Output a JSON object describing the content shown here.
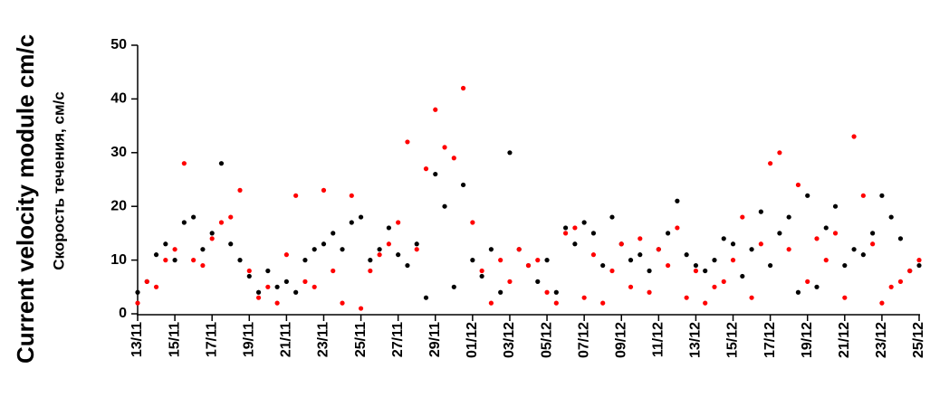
{
  "chart_data": {
    "type": "scatter",
    "y_title": "Current velocity module cm/c",
    "y_subtitle": "Скорость течения, см/с",
    "x": [
      0,
      0.5,
      1,
      1.5,
      2,
      2.5,
      3,
      3.5,
      4,
      4.5,
      5,
      5.5,
      6,
      6.5,
      7,
      7.5,
      8,
      8.5,
      9,
      9.5,
      10,
      10.5,
      11,
      11.5,
      12,
      12.5,
      13,
      13.5,
      14,
      14.5,
      15,
      15.5,
      16,
      16.5,
      17,
      17.5,
      18,
      18.5,
      19,
      19.5,
      20,
      20.5,
      21,
      21.5,
      22,
      22.5,
      23,
      23.5,
      24,
      24.5,
      25,
      25.5,
      26,
      26.5,
      27,
      27.5,
      28,
      28.5,
      29,
      29.5,
      30,
      30.5,
      31,
      31.5,
      32,
      32.5,
      33,
      33.5,
      34,
      34.5,
      35,
      35.5,
      36,
      36.5,
      37,
      37.5,
      38,
      38.5,
      39,
      39.5,
      40,
      40.5,
      41,
      41.5,
      42
    ],
    "series": [
      {
        "color": "#000000",
        "values": [
          4,
          6,
          11,
          13,
          10,
          17,
          18,
          12,
          15,
          28,
          13,
          10,
          7,
          4,
          8,
          5,
          6,
          4,
          10,
          12,
          13,
          15,
          12,
          17,
          18,
          10,
          12,
          16,
          11,
          9,
          13,
          3,
          26,
          20,
          5,
          24,
          10,
          7,
          12,
          4,
          30,
          12,
          9,
          6,
          10,
          4,
          16,
          13,
          17,
          15,
          9,
          18,
          13,
          10,
          11,
          8,
          12,
          15,
          21,
          11,
          9,
          8,
          10,
          14,
          13,
          7,
          12,
          19,
          9,
          15,
          18,
          4,
          22,
          5,
          16,
          20,
          9,
          12,
          11,
          15,
          22,
          18,
          14,
          8,
          9
        ]
      },
      {
        "color": "#ff0000",
        "values": [
          2,
          6,
          5,
          10,
          12,
          28,
          10,
          9,
          14,
          17,
          18,
          23,
          8,
          3,
          5,
          2,
          11,
          22,
          6,
          5,
          23,
          8,
          2,
          22,
          1,
          8,
          11,
          13,
          17,
          32,
          12,
          27,
          38,
          31,
          29,
          42,
          17,
          8,
          2,
          10,
          6,
          12,
          9,
          10,
          4,
          2,
          15,
          16,
          3,
          11,
          2,
          8,
          13,
          5,
          14,
          4,
          12,
          9,
          16,
          3,
          8,
          2,
          5,
          6,
          10,
          18,
          3,
          13,
          28,
          30,
          12,
          24,
          6,
          14,
          10,
          15,
          3,
          33,
          22,
          13,
          2,
          5,
          6,
          8,
          10
        ]
      }
    ],
    "xlim": [
      0,
      42
    ],
    "xticks": [
      {
        "value": 0,
        "label": "13/11"
      },
      {
        "value": 2,
        "label": "15/11"
      },
      {
        "value": 4,
        "label": "17/11"
      },
      {
        "value": 6,
        "label": "19/11"
      },
      {
        "value": 8,
        "label": "21/11"
      },
      {
        "value": 10,
        "label": "23/11"
      },
      {
        "value": 12,
        "label": "25/11"
      },
      {
        "value": 14,
        "label": "27/11"
      },
      {
        "value": 16,
        "label": "29/11"
      },
      {
        "value": 18,
        "label": "01/12"
      },
      {
        "value": 20,
        "label": "03/12"
      },
      {
        "value": 22,
        "label": "05/12"
      },
      {
        "value": 24,
        "label": "07/12"
      },
      {
        "value": 26,
        "label": "09/12"
      },
      {
        "value": 28,
        "label": "11/12"
      },
      {
        "value": 30,
        "label": "13/12"
      },
      {
        "value": 32,
        "label": "15/12"
      },
      {
        "value": 34,
        "label": "17/12"
      },
      {
        "value": 36,
        "label": "19/12"
      },
      {
        "value": 38,
        "label": "21/12"
      },
      {
        "value": 40,
        "label": "23/12"
      },
      {
        "value": 42,
        "label": "25/12"
      }
    ],
    "ylim": [
      0,
      50
    ],
    "yticks": [
      0,
      10,
      20,
      30,
      40,
      50
    ]
  }
}
